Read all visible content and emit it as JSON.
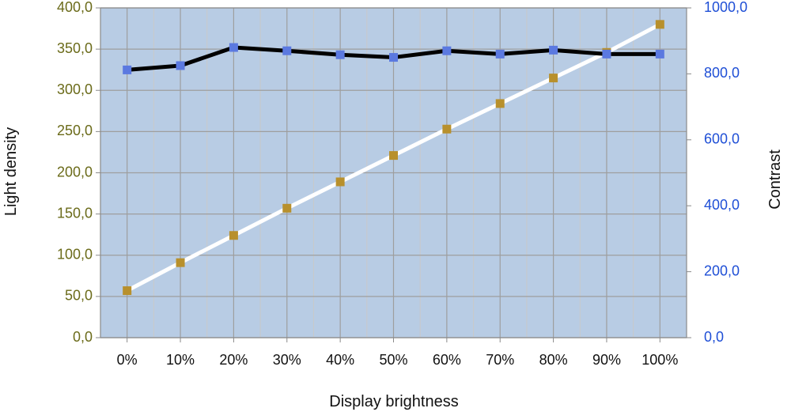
{
  "chart_data": {
    "type": "line",
    "categories": [
      "0%",
      "10%",
      "20%",
      "30%",
      "40%",
      "50%",
      "60%",
      "70%",
      "80%",
      "90%",
      "100%"
    ],
    "xlabel": "Display brightness",
    "ylabel_left": "Light density",
    "ylabel_right": "Contrast",
    "ylim_left": [
      0,
      400
    ],
    "ylim_right": [
      0,
      1000
    ],
    "yticks_left": [
      "0,0",
      "50,0",
      "100,0",
      "150,0",
      "200,0",
      "250,0",
      "300,0",
      "350,0",
      "400,0"
    ],
    "yticks_right": [
      "0,0",
      "200,0",
      "400,0",
      "600,0",
      "800,0",
      "1000,0"
    ],
    "grid": true,
    "series": [
      {
        "axis": "left",
        "line_color": "#ffffff",
        "marker_color": "#b8902c",
        "values": [
          57,
          91,
          124,
          157,
          189,
          221,
          253,
          284,
          315,
          346,
          380
        ]
      },
      {
        "axis": "right",
        "line_color": "#000000",
        "marker_color": "#5b79e0",
        "values": [
          812,
          825,
          880,
          870,
          858,
          850,
          870,
          860,
          872,
          860,
          860
        ]
      }
    ],
    "colors": {
      "plot_background": "#b8cce4",
      "grid": "#9e9e9e",
      "left_tick_text": "#6b6b1a",
      "right_tick_text": "#1f4fd6"
    }
  }
}
